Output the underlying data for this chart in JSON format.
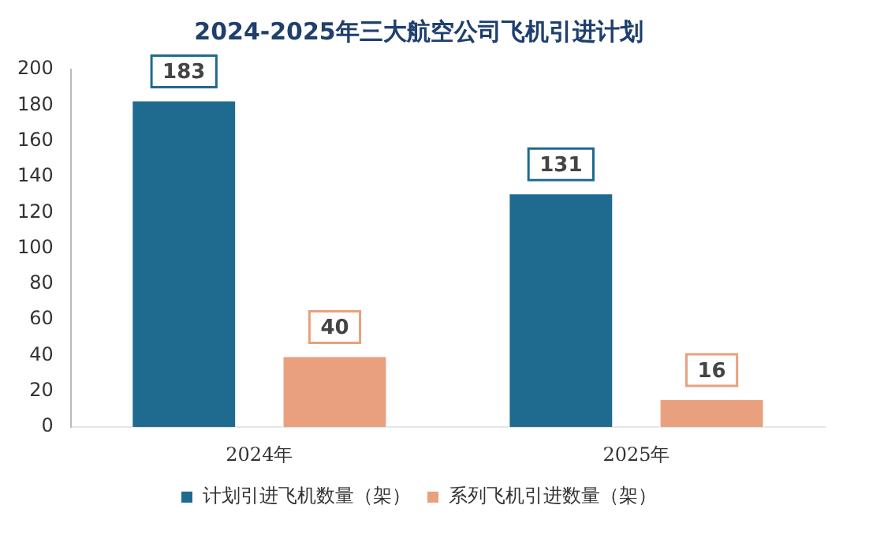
{
  "chart_data": {
    "type": "bar",
    "title": "2024-2025年三大航空公司飞机引进计划",
    "categories": [
      "2024年",
      "2025年"
    ],
    "series": [
      {
        "name": "计划引进飞机数量（架）",
        "color": "#1f6a8f",
        "values": [
          183,
          131
        ]
      },
      {
        "name": "系列飞机引进数量（架）",
        "color": "#e9a07e",
        "values": [
          40,
          16
        ]
      }
    ],
    "ylim": [
      0,
      200
    ],
    "yticks": [
      0,
      20,
      40,
      60,
      80,
      100,
      120,
      140,
      160,
      180,
      200
    ],
    "grid": false,
    "legend": "bottom",
    "data_labels": true
  }
}
